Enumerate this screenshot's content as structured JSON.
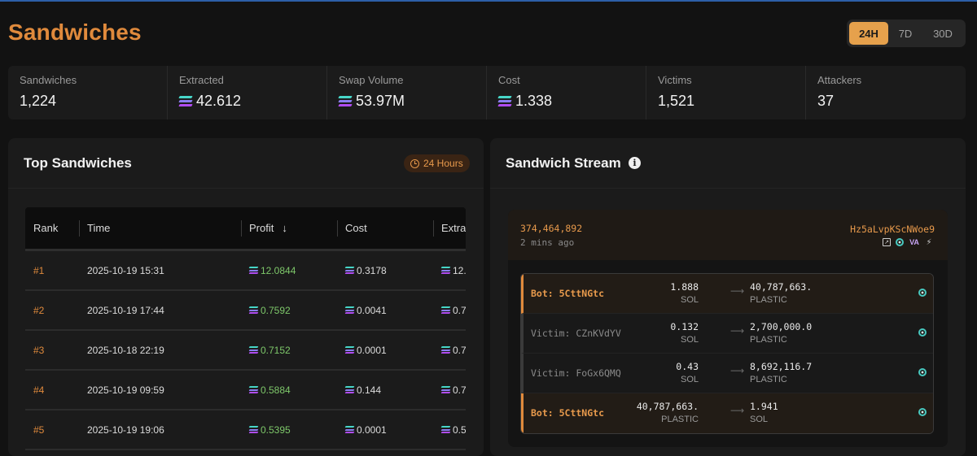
{
  "header": {
    "title": "Sandwiches"
  },
  "time_ranges": [
    {
      "label": "24H",
      "active": true
    },
    {
      "label": "7D",
      "active": false
    },
    {
      "label": "30D",
      "active": false
    }
  ],
  "stats": [
    {
      "label": "Sandwiches",
      "value": "1,224",
      "sol_icon": false
    },
    {
      "label": "Extracted",
      "value": "42.612",
      "sol_icon": true
    },
    {
      "label": "Swap Volume",
      "value": "53.97M",
      "sol_icon": true
    },
    {
      "label": "Cost",
      "value": "1.338",
      "sol_icon": true
    },
    {
      "label": "Victims",
      "value": "1,521",
      "sol_icon": false
    },
    {
      "label": "Attackers",
      "value": "37",
      "sol_icon": false
    }
  ],
  "top_sandwiches": {
    "title": "Top Sandwiches",
    "badge": "24 Hours",
    "columns": [
      "Rank",
      "Time",
      "Profit",
      "Cost",
      "Extra"
    ],
    "rows": [
      {
        "rank": "#1",
        "time": "2025-10-19 15:31",
        "profit": "12.0844",
        "cost": "0.3178",
        "extra": "12."
      },
      {
        "rank": "#2",
        "time": "2025-10-19 17:44",
        "profit": "0.7592",
        "cost": "0.0041",
        "extra": "0.7"
      },
      {
        "rank": "#3",
        "time": "2025-10-18 22:19",
        "profit": "0.7152",
        "cost": "0.0001",
        "extra": "0.7"
      },
      {
        "rank": "#4",
        "time": "2025-10-19 09:59",
        "profit": "0.5884",
        "cost": "0.144",
        "extra": "0.7"
      },
      {
        "rank": "#5",
        "time": "2025-10-19 19:06",
        "profit": "0.5395",
        "cost": "0.0001",
        "extra": "0.5"
      }
    ]
  },
  "stream": {
    "title": "Sandwich Stream",
    "slot": "374,464,892",
    "time_ago": "2 mins ago",
    "signature": "Hz5aLvpKScNWoe9",
    "icons": [
      "external-link-icon",
      "orb-icon",
      "va-icon",
      "bolt-icon"
    ],
    "va_text": "VA",
    "rows": [
      {
        "kind": "bot",
        "actor": "Bot: 5CttNGtc",
        "in_amount": "1.888",
        "in_token": "SOL",
        "out_amount": "40,787,663.",
        "out_token": "PLASTIC"
      },
      {
        "kind": "victim",
        "actor": "Victim: CZnKVdYV",
        "in_amount": "0.132",
        "in_token": "SOL",
        "out_amount": "2,700,000.0",
        "out_token": "PLASTIC"
      },
      {
        "kind": "victim",
        "actor": "Victim: FoGx6QMQ",
        "in_amount": "0.43",
        "in_token": "SOL",
        "out_amount": "8,692,116.7",
        "out_token": "PLASTIC"
      },
      {
        "kind": "bot",
        "actor": "Bot: 5CttNGtc",
        "in_amount": "40,787,663.",
        "in_token": "PLASTIC",
        "out_amount": "1.941",
        "out_token": "SOL"
      }
    ]
  },
  "colors": {
    "accent": "#e08a3c",
    "profit": "#7ec86a",
    "background": "#121212",
    "panel": "#1b1b1b"
  }
}
